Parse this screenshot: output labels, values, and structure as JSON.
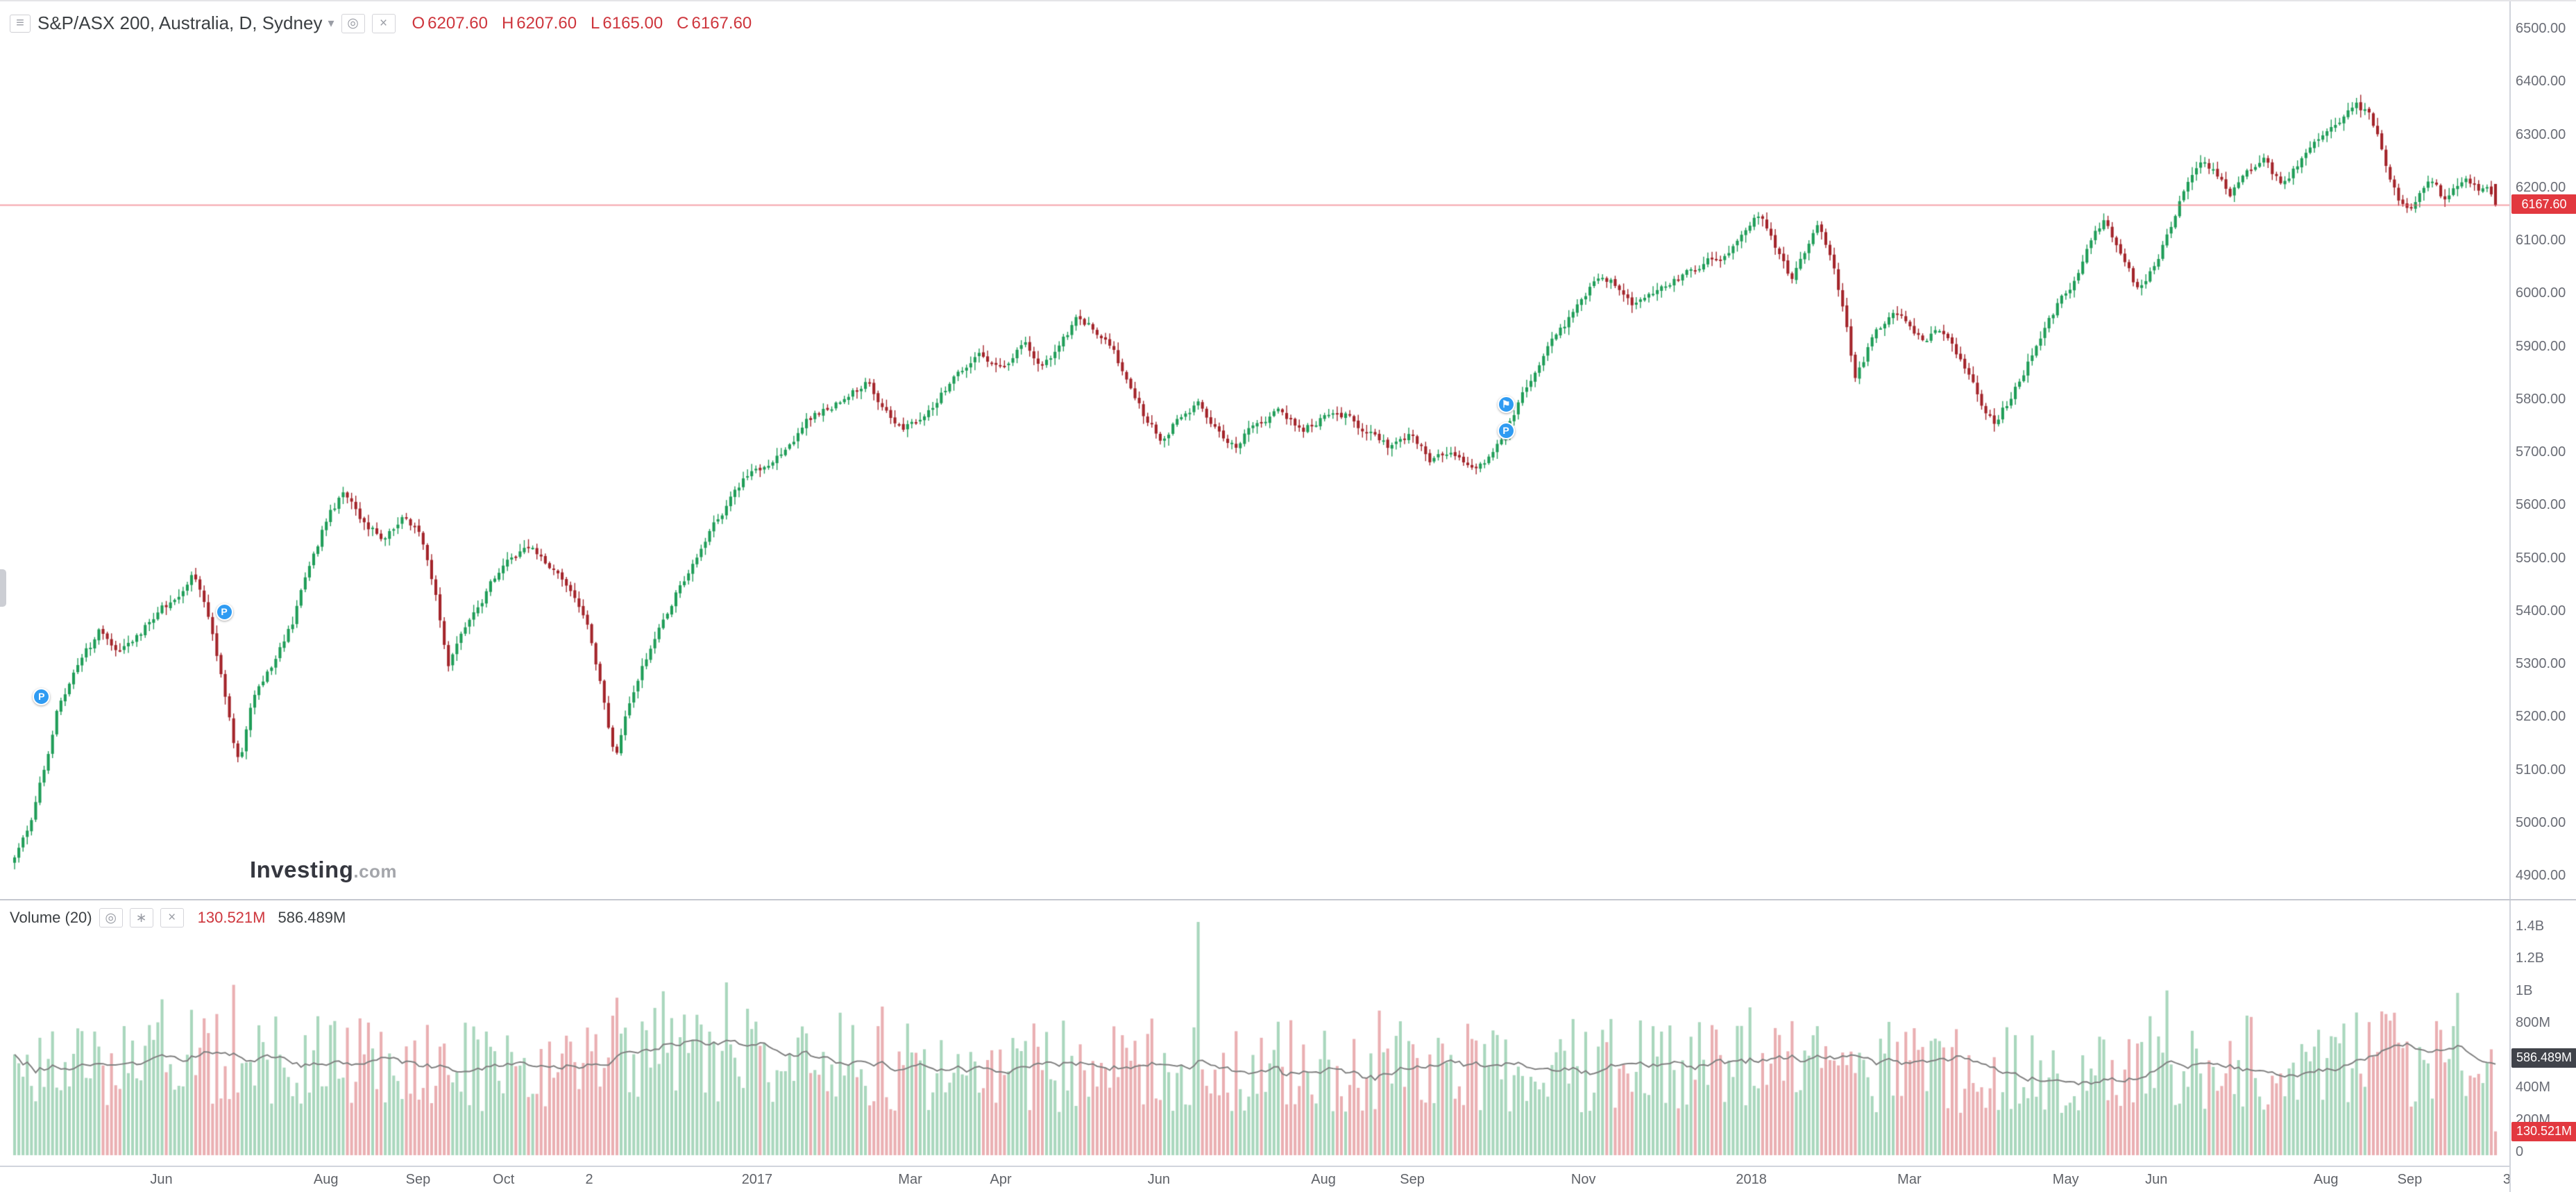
{
  "header": {
    "symbol_title": "S&P/ASX 200, Australia, D, Sydney",
    "ohlc": {
      "o_label": "O",
      "o": "6207.60",
      "h_label": "H",
      "h": "6207.60",
      "l_label": "L",
      "l": "6165.00",
      "c_label": "C",
      "c": "6167.60"
    }
  },
  "watermark": {
    "name": "Investing",
    "tld": ".com"
  },
  "volume_header": {
    "label": "Volume (20)",
    "current": "130.521M",
    "ma": "586.489M"
  },
  "price_axis": {
    "last_price_tag": "6167.60",
    "ticks": [
      {
        "label": "6500.00",
        "value": 6500
      },
      {
        "label": "6400.00",
        "value": 6400
      },
      {
        "label": "6300.00",
        "value": 6300
      },
      {
        "label": "6200.00",
        "value": 6200
      },
      {
        "label": "6100.00",
        "value": 6100
      },
      {
        "label": "6000.00",
        "value": 6000
      },
      {
        "label": "5900.00",
        "value": 5900
      },
      {
        "label": "5800.00",
        "value": 5800
      },
      {
        "label": "5700.00",
        "value": 5700
      },
      {
        "label": "5600.00",
        "value": 5600
      },
      {
        "label": "5500.00",
        "value": 5500
      },
      {
        "label": "5400.00",
        "value": 5400
      },
      {
        "label": "5300.00",
        "value": 5300
      },
      {
        "label": "5200.00",
        "value": 5200
      },
      {
        "label": "5100.00",
        "value": 5100
      },
      {
        "label": "5000.00",
        "value": 5000
      },
      {
        "label": "4900.00",
        "value": 4900
      }
    ]
  },
  "volume_axis": {
    "current_tag": "130.521M",
    "ma_tag": "586.489M",
    "ticks": [
      {
        "label": "1.4B",
        "value": 1400
      },
      {
        "label": "1.2B",
        "value": 1200
      },
      {
        "label": "1B",
        "value": 1000
      },
      {
        "label": "800M",
        "value": 800
      },
      {
        "label": "600M",
        "value": 600
      },
      {
        "label": "400M",
        "value": 400
      },
      {
        "label": "200M",
        "value": 200
      },
      {
        "label": "0",
        "value": 0
      }
    ]
  },
  "time_axis": {
    "labels": [
      {
        "t": 0.0643,
        "label": "Jun"
      },
      {
        "t": 0.1299,
        "label": "Aug"
      },
      {
        "t": 0.1666,
        "label": "Sep"
      },
      {
        "t": 0.2007,
        "label": "Oct"
      },
      {
        "t": 0.2348,
        "label": "2"
      },
      {
        "t": 0.3017,
        "label": "2017"
      },
      {
        "t": 0.3627,
        "label": "Mar"
      },
      {
        "t": 0.3988,
        "label": "Apr"
      },
      {
        "t": 0.4618,
        "label": "Jun"
      },
      {
        "t": 0.5274,
        "label": "Aug"
      },
      {
        "t": 0.5628,
        "label": "Sep"
      },
      {
        "t": 0.631,
        "label": "Nov"
      },
      {
        "t": 0.6979,
        "label": "2018"
      },
      {
        "t": 0.7609,
        "label": "Mar"
      },
      {
        "t": 0.8232,
        "label": "May"
      },
      {
        "t": 0.8593,
        "label": "Jun"
      },
      {
        "t": 0.9269,
        "label": "Aug"
      },
      {
        "t": 0.9603,
        "label": "Sep"
      },
      {
        "t": 0.999,
        "label": "3"
      }
    ]
  },
  "chart_data": {
    "type": "candlestick",
    "title": "S&P/ASX 200, Australia, D, Sydney",
    "symbol": "S&P/ASX 200",
    "interval": "D",
    "exchange": "Sydney",
    "price_range": [
      4900,
      6500
    ],
    "volume_range_m": [
      0,
      1400
    ],
    "candle_count": 590,
    "last_candle": {
      "open": 6207.6,
      "high": 6207.6,
      "low": 6165.0,
      "close": 6167.6,
      "volume_m": 130.521
    },
    "volume_ma20_m": 586.489,
    "price_anchors": [
      [
        0.0,
        4940
      ],
      [
        0.006,
        5000
      ],
      [
        0.012,
        5110
      ],
      [
        0.018,
        5230
      ],
      [
        0.026,
        5300
      ],
      [
        0.034,
        5360
      ],
      [
        0.042,
        5330
      ],
      [
        0.05,
        5360
      ],
      [
        0.058,
        5400
      ],
      [
        0.066,
        5430
      ],
      [
        0.072,
        5470
      ],
      [
        0.078,
        5390
      ],
      [
        0.083,
        5290
      ],
      [
        0.088,
        5160
      ],
      [
        0.091,
        5115
      ],
      [
        0.096,
        5240
      ],
      [
        0.104,
        5300
      ],
      [
        0.112,
        5380
      ],
      [
        0.12,
        5500
      ],
      [
        0.127,
        5590
      ],
      [
        0.133,
        5625
      ],
      [
        0.14,
        5570
      ],
      [
        0.148,
        5545
      ],
      [
        0.156,
        5575
      ],
      [
        0.163,
        5545
      ],
      [
        0.169,
        5450
      ],
      [
        0.175,
        5300
      ],
      [
        0.181,
        5370
      ],
      [
        0.19,
        5435
      ],
      [
        0.199,
        5505
      ],
      [
        0.208,
        5520
      ],
      [
        0.216,
        5485
      ],
      [
        0.224,
        5430
      ],
      [
        0.231,
        5370
      ],
      [
        0.237,
        5250
      ],
      [
        0.242,
        5125
      ],
      [
        0.247,
        5215
      ],
      [
        0.255,
        5315
      ],
      [
        0.264,
        5410
      ],
      [
        0.273,
        5490
      ],
      [
        0.282,
        5560
      ],
      [
        0.29,
        5630
      ],
      [
        0.297,
        5665
      ],
      [
        0.303,
        5680
      ],
      [
        0.311,
        5700
      ],
      [
        0.319,
        5755
      ],
      [
        0.327,
        5785
      ],
      [
        0.336,
        5810
      ],
      [
        0.344,
        5835
      ],
      [
        0.351,
        5775
      ],
      [
        0.359,
        5745
      ],
      [
        0.369,
        5785
      ],
      [
        0.379,
        5845
      ],
      [
        0.389,
        5880
      ],
      [
        0.399,
        5870
      ],
      [
        0.407,
        5900
      ],
      [
        0.414,
        5865
      ],
      [
        0.421,
        5905
      ],
      [
        0.429,
        5955
      ],
      [
        0.436,
        5935
      ],
      [
        0.443,
        5895
      ],
      [
        0.449,
        5820
      ],
      [
        0.456,
        5765
      ],
      [
        0.462,
        5730
      ],
      [
        0.47,
        5770
      ],
      [
        0.477,
        5790
      ],
      [
        0.485,
        5745
      ],
      [
        0.492,
        5715
      ],
      [
        0.5,
        5760
      ],
      [
        0.51,
        5780
      ],
      [
        0.519,
        5745
      ],
      [
        0.527,
        5765
      ],
      [
        0.536,
        5770
      ],
      [
        0.545,
        5740
      ],
      [
        0.554,
        5712
      ],
      [
        0.563,
        5730
      ],
      [
        0.571,
        5682
      ],
      [
        0.579,
        5700
      ],
      [
        0.587,
        5668
      ],
      [
        0.594,
        5690
      ],
      [
        0.6,
        5735
      ],
      [
        0.607,
        5805
      ],
      [
        0.615,
        5880
      ],
      [
        0.622,
        5925
      ],
      [
        0.63,
        5975
      ],
      [
        0.638,
        6035
      ],
      [
        0.645,
        6020
      ],
      [
        0.652,
        5985
      ],
      [
        0.661,
        6005
      ],
      [
        0.67,
        6030
      ],
      [
        0.68,
        6055
      ],
      [
        0.69,
        6080
      ],
      [
        0.697,
        6115
      ],
      [
        0.703,
        6150
      ],
      [
        0.71,
        6090
      ],
      [
        0.716,
        6025
      ],
      [
        0.722,
        6080
      ],
      [
        0.727,
        6125
      ],
      [
        0.733,
        6060
      ],
      [
        0.738,
        5955
      ],
      [
        0.742,
        5840
      ],
      [
        0.748,
        5905
      ],
      [
        0.753,
        5940
      ],
      [
        0.758,
        5968
      ],
      [
        0.762,
        5945
      ],
      [
        0.768,
        5912
      ],
      [
        0.775,
        5930
      ],
      [
        0.781,
        5898
      ],
      [
        0.787,
        5858
      ],
      [
        0.793,
        5790
      ],
      [
        0.798,
        5762
      ],
      [
        0.805,
        5805
      ],
      [
        0.812,
        5872
      ],
      [
        0.819,
        5945
      ],
      [
        0.824,
        5985
      ],
      [
        0.831,
        6035
      ],
      [
        0.838,
        6108
      ],
      [
        0.843,
        6142
      ],
      [
        0.849,
        6078
      ],
      [
        0.854,
        6025
      ],
      [
        0.858,
        6012
      ],
      [
        0.863,
        6055
      ],
      [
        0.869,
        6125
      ],
      [
        0.875,
        6205
      ],
      [
        0.881,
        6252
      ],
      [
        0.887,
        6228
      ],
      [
        0.893,
        6185
      ],
      [
        0.9,
        6222
      ],
      [
        0.907,
        6248
      ],
      [
        0.914,
        6205
      ],
      [
        0.921,
        6248
      ],
      [
        0.927,
        6282
      ],
      [
        0.933,
        6302
      ],
      [
        0.939,
        6332
      ],
      [
        0.944,
        6355
      ],
      [
        0.949,
        6338
      ],
      [
        0.953,
        6298
      ],
      [
        0.957,
        6228
      ],
      [
        0.961,
        6178
      ],
      [
        0.965,
        6152
      ],
      [
        0.969,
        6192
      ],
      [
        0.974,
        6212
      ],
      [
        0.979,
        6180
      ],
      [
        0.984,
        6202
      ],
      [
        0.989,
        6222
      ],
      [
        0.993,
        6192
      ],
      [
        0.997,
        6205
      ],
      [
        1.0,
        6167.6
      ]
    ],
    "volume_base_anchors_m": [
      [
        0.0,
        540
      ],
      [
        0.05,
        590
      ],
      [
        0.1,
        610
      ],
      [
        0.15,
        560
      ],
      [
        0.2,
        545
      ],
      [
        0.25,
        595
      ],
      [
        0.3,
        615
      ],
      [
        0.35,
        565
      ],
      [
        0.4,
        545
      ],
      [
        0.45,
        560
      ],
      [
        0.5,
        570
      ],
      [
        0.55,
        555
      ],
      [
        0.6,
        545
      ],
      [
        0.65,
        560
      ],
      [
        0.7,
        575
      ],
      [
        0.75,
        555
      ],
      [
        0.8,
        525
      ],
      [
        0.85,
        560
      ],
      [
        0.9,
        580
      ],
      [
        0.95,
        595
      ],
      [
        1.0,
        560
      ]
    ],
    "volume_spikes_m": [
      [
        0.06,
        950
      ],
      [
        0.088,
        1040
      ],
      [
        0.243,
        960
      ],
      [
        0.262,
        1000
      ],
      [
        0.287,
        1055
      ],
      [
        0.35,
        905
      ],
      [
        0.477,
        1430
      ],
      [
        0.55,
        880
      ],
      [
        0.7,
        900
      ],
      [
        0.868,
        1005
      ],
      [
        0.955,
        875
      ],
      [
        0.985,
        990
      ]
    ],
    "markers": [
      {
        "t": 0.0164,
        "price": 5240,
        "glyph": "P"
      },
      {
        "t": 0.0892,
        "price": 5400,
        "glyph": "P"
      },
      {
        "t": 0.6,
        "price": 5792,
        "glyph": "⚑"
      },
      {
        "t": 0.6,
        "price": 5742,
        "glyph": "P"
      }
    ],
    "colors": {
      "up": "#1f9d58",
      "down": "#a3242a",
      "volume_up": "rgba(84,175,123,0.5)",
      "volume_down": "rgba(214,96,102,0.5)",
      "volume_ma": "#808080",
      "last_price_line": "rgba(236,86,98,0.55)",
      "tag_red": "#e2383f",
      "tag_dark": "#40434a",
      "marker": "#2f9bf2"
    }
  }
}
